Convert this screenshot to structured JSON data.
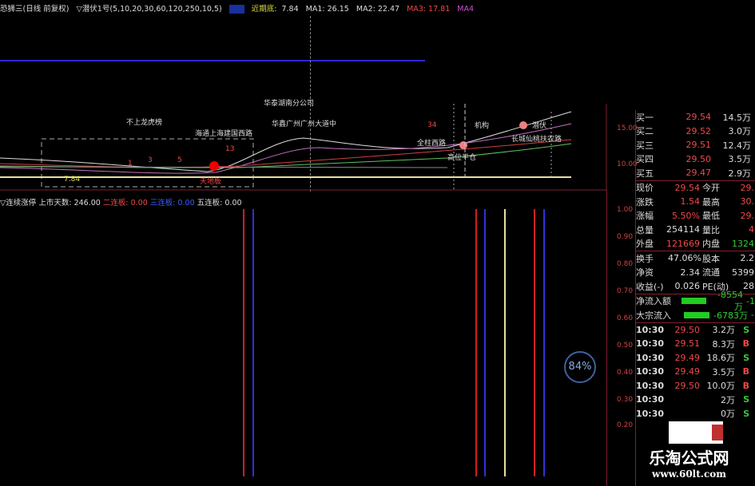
{
  "header": {
    "title": "恐狮三(日线 前复权)",
    "indicator": "▽潜伏1号(5,10,20,30,60,120,250,10,5)",
    "recent_low_label": "近期底:",
    "recent_low": "7.84",
    "ma1": "MA1: 26.15",
    "ma2": "MA2: 22.47",
    "ma3": "MA3: 17.81",
    "ma4": "MA4"
  },
  "annotations": [
    "不上龙虎榜",
    "海通上海建国西路",
    "华泰湖南分公司",
    "华鑫广州广州大道中",
    "机构",
    "潜伏",
    "长城仙桃扶农路",
    "全柱西路",
    "高位平仓",
    "1",
    "3",
    "5",
    "13",
    "34",
    "7.84",
    "天地板"
  ],
  "price_axis": [
    "15.00",
    "10.00"
  ],
  "indicator_header": {
    "name": "▽连续涨停",
    "days_label": "上市天数:",
    "days": "246.00",
    "b2": "二连板: 0.00",
    "b3": "三连板: 0.00",
    "b5": "五连板: 0.00"
  },
  "indicator_axis": [
    "1.00",
    "0.90",
    "0.80",
    "0.70",
    "0.60",
    "0.50",
    "0.40",
    "0.30",
    "0.20"
  ],
  "bids": [
    {
      "l": "买一",
      "p": "29.54",
      "v": "14.5万"
    },
    {
      "l": "买二",
      "p": "29.52",
      "v": "3.0万"
    },
    {
      "l": "买三",
      "p": "29.51",
      "v": "12.4万"
    },
    {
      "l": "买四",
      "p": "29.50",
      "v": "3.5万"
    },
    {
      "l": "买五",
      "p": "29.47",
      "v": "2.9万"
    }
  ],
  "quote": [
    {
      "l": "现价",
      "v": "29.54",
      "l2": "今开",
      "v2": "29."
    },
    {
      "l": "涨跌",
      "v": "1.54",
      "l2": "最高",
      "v2": "30."
    },
    {
      "l": "涨幅",
      "v": "5.50%",
      "l2": "最低",
      "v2": "29."
    },
    {
      "l": "总量",
      "v": "254114",
      "l2": "量比",
      "v2": "4"
    },
    {
      "l": "外盘",
      "v": "121669",
      "l2": "内盘",
      "v2": "1324"
    }
  ],
  "fund": [
    {
      "l": "换手",
      "v": "47.06%",
      "l2": "股本",
      "v2": "2.2"
    },
    {
      "l": "净资",
      "v": "2.34",
      "l2": "流通",
      "v2": "5399"
    },
    {
      "l": "收益(-)",
      "v": "0.026",
      "l2": "PE(动)",
      "v2": "28"
    }
  ],
  "flows": [
    {
      "l": "净流入额",
      "v": "-8554万",
      "x": "-1"
    },
    {
      "l": "大宗流入",
      "v": "-6783万",
      "x": "-"
    }
  ],
  "ticks": [
    {
      "t": "10:30",
      "p": "29.50",
      "v": "3.2万",
      "s": "S"
    },
    {
      "t": "10:30",
      "p": "29.51",
      "v": "8.3万",
      "s": "B"
    },
    {
      "t": "10:30",
      "p": "29.49",
      "v": "18.6万",
      "s": "S"
    },
    {
      "t": "10:30",
      "p": "29.49",
      "v": "3.5万",
      "s": "B"
    },
    {
      "t": "10:30",
      "p": "29.50",
      "v": "10.0万",
      "s": "B"
    },
    {
      "t": "10:30",
      "p": "",
      "v": "2万",
      "s": "S"
    },
    {
      "t": "10:30",
      "p": "",
      "v": "0万",
      "s": "S"
    }
  ],
  "badge": "84%",
  "watermark": {
    "name": "乐淘公式网",
    "url": "www.60lt.com"
  }
}
